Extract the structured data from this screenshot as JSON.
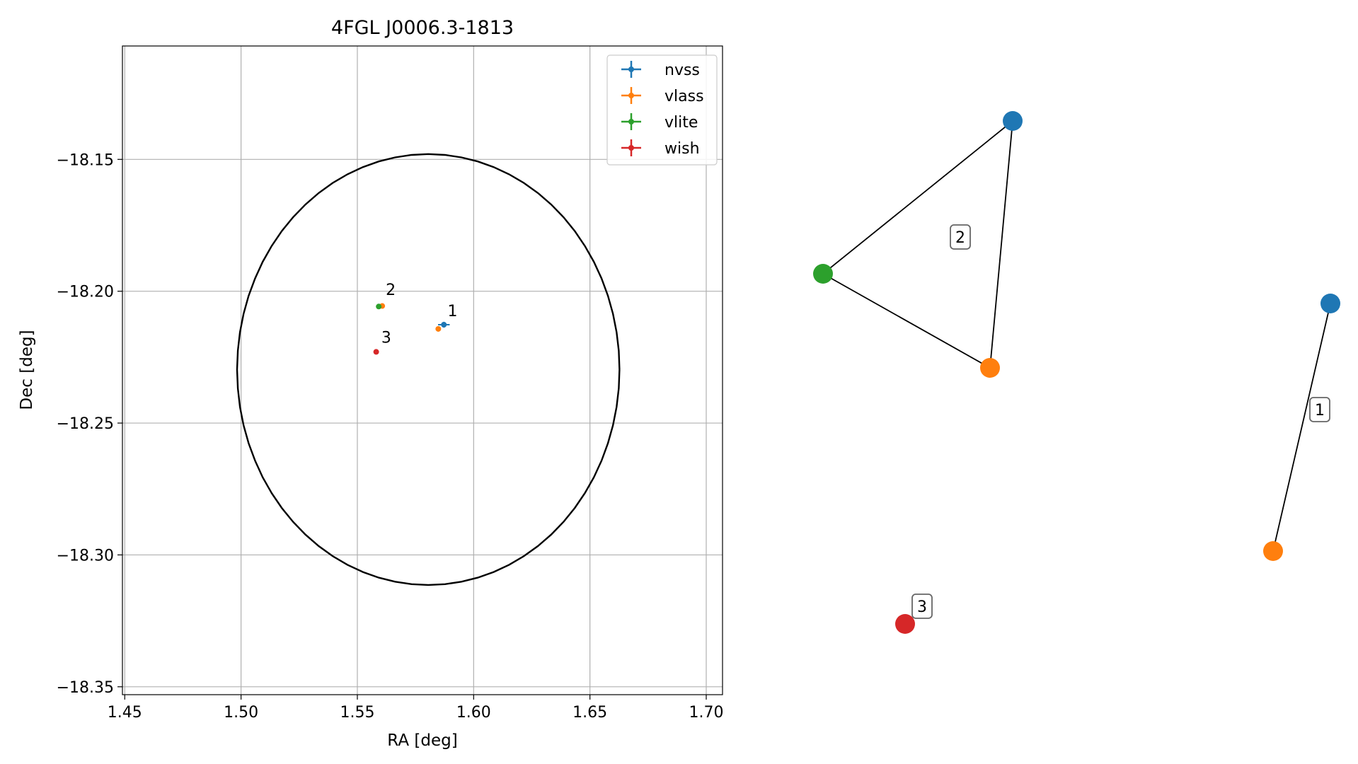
{
  "chart_data": [
    {
      "type": "scatter",
      "title": "4FGL J0006.3-1813",
      "xlabel": "RA [deg]",
      "ylabel": "Dec [deg]",
      "xlim": [
        1.449,
        1.707
      ],
      "ylim": [
        -18.353,
        -18.107
      ],
      "xticks": [
        1.45,
        1.5,
        1.55,
        1.6,
        1.65,
        1.7
      ],
      "xtick_labels": [
        "1.45",
        "1.50",
        "1.55",
        "1.60",
        "1.65",
        "1.70"
      ],
      "yticks": [
        -18.15,
        -18.2,
        -18.25,
        -18.3,
        -18.35
      ],
      "ytick_labels": [
        "−18.15",
        "−18.20",
        "−18.25",
        "−18.30",
        "−18.35"
      ],
      "grid": true,
      "legend_position": "top-right",
      "series": [
        {
          "name": "nvss",
          "color": "#1f77b4",
          "points": [
            {
              "x": 1.5872,
              "y": -18.2127,
              "xerr": 0.0025,
              "yerr": 0.0011
            }
          ]
        },
        {
          "name": "vlass",
          "color": "#ff7f0e",
          "points": [
            {
              "x": 1.5607,
              "y": -18.2056,
              "xerr": 0.0006,
              "yerr": 0.0006
            },
            {
              "x": 1.5848,
              "y": -18.2143,
              "xerr": 0.0005,
              "yerr": 0.0005
            }
          ]
        },
        {
          "name": "vlite",
          "color": "#2ca02c",
          "points": [
            {
              "x": 1.5592,
              "y": -18.2058,
              "xerr": 0.0006,
              "yerr": 0.0006
            }
          ]
        },
        {
          "name": "wish",
          "color": "#d62728",
          "points": [
            {
              "x": 1.5581,
              "y": -18.223,
              "xerr": 0.0005,
              "yerr": 0.0005
            }
          ]
        }
      ],
      "annotations": [
        {
          "text": "1",
          "x": 1.5888,
          "y": -18.2095
        },
        {
          "text": "2",
          "x": 1.5622,
          "y": -18.2014
        },
        {
          "text": "3",
          "x": 1.5603,
          "y": -18.2195
        }
      ],
      "ellipse": {
        "center": [
          1.5805,
          -18.2297
        ],
        "ra_semi_axis": 0.0822,
        "dec_semi_axis": 0.0817,
        "color": "#000000"
      }
    },
    {
      "type": "graph",
      "nodes": [
        {
          "id": "nvss-2",
          "color": "#1f77b4"
        },
        {
          "id": "vlite-2",
          "color": "#2ca02c"
        },
        {
          "id": "vlass-2",
          "color": "#ff7f0e"
        },
        {
          "id": "nvss-1",
          "color": "#1f77b4"
        },
        {
          "id": "vlass-1",
          "color": "#ff7f0e"
        },
        {
          "id": "wish-3",
          "color": "#d62728"
        }
      ],
      "edges": [
        [
          "nvss-2",
          "vlite-2"
        ],
        [
          "nvss-2",
          "vlass-2"
        ],
        [
          "vlite-2",
          "vlass-2"
        ],
        [
          "nvss-1",
          "vlass-1"
        ]
      ],
      "group_labels": [
        "2",
        "1",
        "3"
      ]
    }
  ]
}
